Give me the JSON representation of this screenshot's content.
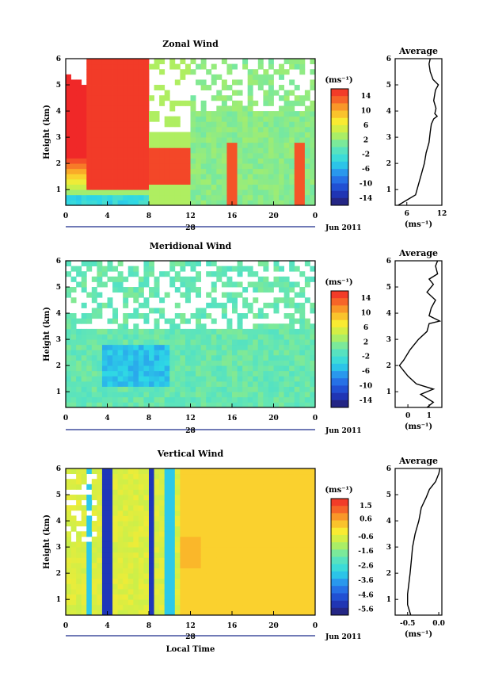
{
  "chart_data": [
    {
      "type": "heatmap",
      "title": "Zonal Wind",
      "ylabel": "Height (km)",
      "xlabel": "",
      "x_ticks": [
        "0",
        "4",
        "8",
        "12",
        "16",
        "20",
        "0"
      ],
      "xlim": [
        0,
        24
      ],
      "y_ticks": [
        "1",
        "2",
        "3",
        "4",
        "5",
        "6"
      ],
      "ylim": [
        0.4,
        6
      ],
      "date_label": "28",
      "month_label": "Jun 2011",
      "colorbar": {
        "label": "(ms⁻¹)",
        "ticks": [
          "14",
          "10",
          "6",
          "2",
          "-2",
          "-6",
          "-10",
          "-14"
        ],
        "range": [
          -16,
          16
        ]
      },
      "profile": {
        "title": "Average",
        "xlabel": "(ms⁻¹)",
        "x_ticks": [
          "6",
          "12"
        ],
        "xlim": [
          4,
          12
        ],
        "y_ticks": [
          "1",
          "2",
          "3",
          "4",
          "5",
          "6"
        ],
        "points": [
          [
            4.5,
            0.4
          ],
          [
            6.0,
            0.6
          ],
          [
            7.5,
            0.8
          ],
          [
            8.0,
            1.2
          ],
          [
            8.5,
            1.6
          ],
          [
            9.0,
            2.0
          ],
          [
            9.3,
            2.4
          ],
          [
            9.8,
            2.8
          ],
          [
            10.0,
            3.2
          ],
          [
            10.2,
            3.5
          ],
          [
            10.6,
            3.7
          ],
          [
            11.2,
            3.8
          ],
          [
            10.8,
            3.9
          ],
          [
            11.0,
            4.1
          ],
          [
            10.6,
            4.4
          ],
          [
            10.9,
            4.8
          ],
          [
            11.4,
            5.0
          ],
          [
            10.5,
            5.2
          ],
          [
            10.0,
            5.5
          ],
          [
            9.8,
            5.8
          ],
          [
            10.0,
            6.0
          ]
        ]
      }
    },
    {
      "type": "heatmap",
      "title": "Meridional Wind",
      "ylabel": "Height (km)",
      "xlabel": "",
      "x_ticks": [
        "0",
        "4",
        "8",
        "12",
        "16",
        "20",
        "0"
      ],
      "xlim": [
        0,
        24
      ],
      "y_ticks": [
        "1",
        "2",
        "3",
        "4",
        "5",
        "6"
      ],
      "ylim": [
        0.4,
        6
      ],
      "date_label": "28",
      "month_label": "Jun 2011",
      "colorbar": {
        "label": "(ms⁻¹)",
        "ticks": [
          "14",
          "10",
          "6",
          "2",
          "-2",
          "-6",
          "-10",
          "-14"
        ],
        "range": [
          -16,
          16
        ]
      },
      "profile": {
        "title": "Average",
        "xlabel": "(ms⁻¹)",
        "x_ticks": [
          "0",
          "1"
        ],
        "xlim": [
          -0.6,
          1.6
        ],
        "y_ticks": [
          "1",
          "2",
          "3",
          "4",
          "5",
          "6"
        ],
        "points": [
          [
            0.9,
            0.4
          ],
          [
            1.2,
            0.6
          ],
          [
            0.6,
            0.9
          ],
          [
            1.2,
            1.1
          ],
          [
            0.4,
            1.3
          ],
          [
            0.0,
            1.6
          ],
          [
            -0.4,
            2.0
          ],
          [
            -0.2,
            2.2
          ],
          [
            0.1,
            2.6
          ],
          [
            0.5,
            3.0
          ],
          [
            0.9,
            3.3
          ],
          [
            1.0,
            3.6
          ],
          [
            1.5,
            3.7
          ],
          [
            1.0,
            3.9
          ],
          [
            1.1,
            4.2
          ],
          [
            1.3,
            4.5
          ],
          [
            0.9,
            4.8
          ],
          [
            1.2,
            5.1
          ],
          [
            1.0,
            5.3
          ],
          [
            1.4,
            5.5
          ],
          [
            1.3,
            5.8
          ],
          [
            1.4,
            6.0
          ]
        ]
      }
    },
    {
      "type": "heatmap",
      "title": "Vertical Wind",
      "ylabel": "Height (km)",
      "xlabel": "Local Time",
      "x_ticks": [
        "0",
        "4",
        "8",
        "12",
        "16",
        "20",
        "0"
      ],
      "xlim": [
        0,
        24
      ],
      "y_ticks": [
        "1",
        "2",
        "3",
        "4",
        "5",
        "6"
      ],
      "ylim": [
        0.4,
        6
      ],
      "date_label": "28",
      "month_label": "Jun 2011",
      "colorbar": {
        "label": "(ms⁻¹)",
        "ticks": [
          "1.5",
          "0.6",
          "-0.6",
          "-1.6",
          "-2.6",
          "-3.6",
          "-4.6",
          "-5.6"
        ],
        "range": [
          -6,
          2
        ]
      },
      "profile": {
        "title": "Average",
        "xlabel": "(ms⁻¹)",
        "x_ticks": [
          "-0.5",
          "0.0"
        ],
        "xlim": [
          -0.7,
          0.05
        ],
        "y_ticks": [
          "1",
          "2",
          "3",
          "4",
          "5",
          "6"
        ],
        "points": [
          [
            -0.45,
            0.4
          ],
          [
            -0.5,
            0.8
          ],
          [
            -0.5,
            1.2
          ],
          [
            -0.48,
            1.6
          ],
          [
            -0.46,
            2.0
          ],
          [
            -0.44,
            2.5
          ],
          [
            -0.42,
            3.0
          ],
          [
            -0.38,
            3.5
          ],
          [
            -0.32,
            4.0
          ],
          [
            -0.28,
            4.5
          ],
          [
            -0.2,
            4.9
          ],
          [
            -0.15,
            5.2
          ],
          [
            -0.05,
            5.5
          ],
          [
            0.0,
            5.8
          ],
          [
            0.02,
            6.0
          ]
        ]
      }
    }
  ]
}
